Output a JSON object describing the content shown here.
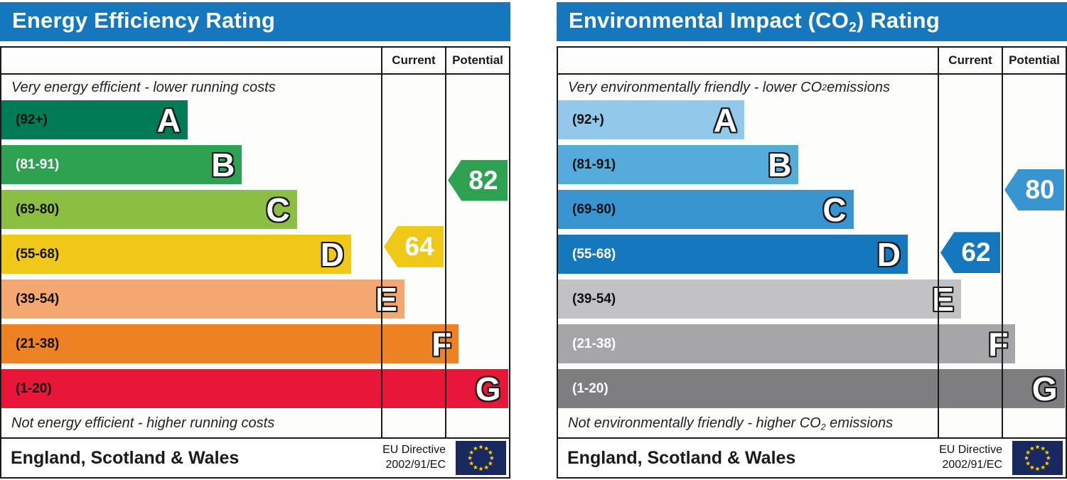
{
  "page": {
    "background": "#FFFFFF",
    "header_bg": "#1577BE",
    "border_color": "#1A1A1A"
  },
  "eu_flag": {
    "field_color": "#182960",
    "star_color": "#FFCC00",
    "star_count": 12
  },
  "chart_data": [
    {
      "type": "bar",
      "chart_kind": "epc-rating-scale",
      "title_parts": {
        "pre": "Energy Efficiency Rating",
        "sub": "",
        "post": ""
      },
      "columns": {
        "current": "Current",
        "potential": "Potential"
      },
      "top_note_parts": {
        "pre": "Very energy efficient - lower running costs",
        "sub": "",
        "post": ""
      },
      "bottom_note_parts": {
        "pre": "Not energy efficient - higher running costs",
        "sub": "",
        "post": ""
      },
      "bands": [
        {
          "letter": "A",
          "label": "(92+)",
          "min": 92,
          "max": 100,
          "width_pct": 36.7,
          "color": "#007B55",
          "label_color": "#111111"
        },
        {
          "letter": "B",
          "label": "(81-91)",
          "min": 81,
          "max": 91,
          "width_pct": 47.4,
          "color": "#2EA152",
          "label_color": "#FFFFFF"
        },
        {
          "letter": "C",
          "label": "(69-80)",
          "min": 69,
          "max": 80,
          "width_pct": 58.2,
          "color": "#8CBE43",
          "label_color": "#111111"
        },
        {
          "letter": "D",
          "label": "(55-68)",
          "min": 55,
          "max": 68,
          "width_pct": 68.9,
          "color": "#F0C818",
          "label_color": "#111111"
        },
        {
          "letter": "E",
          "label": "(39-54)",
          "min": 39,
          "max": 54,
          "width_pct": 79.4,
          "color": "#F4A86F",
          "label_color": "#111111"
        },
        {
          "letter": "F",
          "label": "(21-38)",
          "min": 21,
          "max": 38,
          "width_pct": 90.1,
          "color": "#EE8122",
          "label_color": "#111111"
        },
        {
          "letter": "G",
          "label": "(1-20)",
          "min": 1,
          "max": 20,
          "width_pct": 99.8,
          "color": "#E8173A",
          "label_color": "#111111"
        }
      ],
      "current": {
        "value": 64,
        "band": "D",
        "color": "#F0C818"
      },
      "potential": {
        "value": 82,
        "band": "B",
        "color": "#2EA152"
      },
      "footer": {
        "region": "England, Scotland & Wales",
        "directive_lines": [
          "EU Directive",
          "2002/91/EC"
        ]
      }
    },
    {
      "type": "bar",
      "chart_kind": "epc-rating-scale",
      "title_parts": {
        "pre": "Environmental Impact (CO",
        "sub": "2",
        "post": ") Rating"
      },
      "columns": {
        "current": "Current",
        "potential": "Potential"
      },
      "top_note_parts": {
        "pre": "Very environmentally friendly - lower CO",
        "sub": "2",
        "post": " emissions"
      },
      "bottom_note_parts": {
        "pre": "Not environmentally friendly - higher CO",
        "sub": "2",
        "post": " emissions"
      },
      "bands": [
        {
          "letter": "A",
          "label": "(92+)",
          "min": 92,
          "max": 100,
          "width_pct": 36.7,
          "color": "#92C9EA",
          "label_color": "#111111"
        },
        {
          "letter": "B",
          "label": "(81-91)",
          "min": 81,
          "max": 91,
          "width_pct": 47.4,
          "color": "#55ACDC",
          "label_color": "#111111"
        },
        {
          "letter": "C",
          "label": "(69-80)",
          "min": 69,
          "max": 80,
          "width_pct": 58.2,
          "color": "#3895D2",
          "label_color": "#111111"
        },
        {
          "letter": "D",
          "label": "(55-68)",
          "min": 55,
          "max": 68,
          "width_pct": 68.9,
          "color": "#1577BE",
          "label_color": "#FFFFFF"
        },
        {
          "letter": "E",
          "label": "(39-54)",
          "min": 39,
          "max": 54,
          "width_pct": 79.4,
          "color": "#C2C2C6",
          "label_color": "#111111"
        },
        {
          "letter": "F",
          "label": "(21-38)",
          "min": 21,
          "max": 38,
          "width_pct": 90.1,
          "color": "#A6A6AA",
          "label_color": "#FFFFFF"
        },
        {
          "letter": "G",
          "label": "(1-20)",
          "min": 1,
          "max": 20,
          "width_pct": 99.8,
          "color": "#7E7E82",
          "label_color": "#FFFFFF"
        }
      ],
      "current": {
        "value": 62,
        "band": "D",
        "color": "#1577BE"
      },
      "potential": {
        "value": 80,
        "band": "C",
        "color": "#3895D2"
      },
      "footer": {
        "region": "England, Scotland & Wales",
        "directive_lines": [
          "EU Directive",
          "2002/91/EC"
        ]
      }
    }
  ]
}
